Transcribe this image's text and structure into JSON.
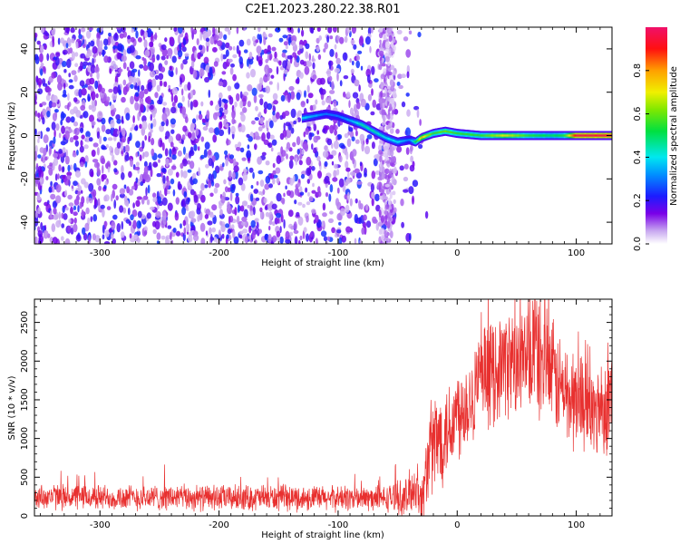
{
  "title": "C2E1.2023.280.22.38.R01",
  "colors": {
    "snr_line": "#e8302f",
    "frame": "#000000",
    "background": "#ffffff"
  },
  "chart_data": [
    {
      "type": "heatmap",
      "xlabel": "Height of straight line (km)",
      "ylabel": "Frequency (Hz)",
      "xlim": [
        -355,
        130
      ],
      "ylim": [
        -50,
        50
      ],
      "x_ticks": [
        -300,
        -200,
        -100,
        0,
        100
      ],
      "x_tick_labels": [
        "-300",
        "-200",
        "-100",
        "0",
        "100"
      ],
      "y_ticks": [
        -40,
        -20,
        0,
        20,
        40
      ],
      "y_tick_labels": [
        "-40",
        "-20",
        "0",
        "20",
        "40"
      ],
      "colorbar": {
        "label": "Normalized spectral amplitude",
        "range": [
          0,
          1
        ],
        "ticks": [
          0.0,
          0.2,
          0.4,
          0.6,
          0.8
        ],
        "tick_labels": [
          "0.0",
          "0.2",
          "0.4",
          "0.6",
          "0.8"
        ],
        "colormap": "purple-blue-cyan-green-yellow-orange-red-pink"
      },
      "noise_region": {
        "x_range": [
          -355,
          -40
        ],
        "amplitude": [
          0.05,
          0.25
        ]
      },
      "noise_stripe": {
        "x_range": [
          -65,
          -52
        ],
        "amplitude": [
          0.02,
          0.12
        ]
      },
      "signal_track": {
        "x": [
          -130,
          -110,
          -100,
          -90,
          -80,
          -70,
          -60,
          -50,
          -40,
          -35,
          -30,
          -20,
          -10,
          0,
          20,
          40,
          60,
          80,
          90,
          100,
          120,
          130
        ],
        "frequency": [
          8,
          10,
          9,
          7,
          5,
          2,
          -1,
          -3,
          -2,
          -3,
          -1,
          1,
          2,
          1,
          0,
          0,
          0,
          0,
          0,
          0,
          0,
          0
        ],
        "amplitude": [
          0.4,
          0.3,
          0.3,
          0.35,
          0.45,
          0.45,
          0.4,
          0.4,
          0.3,
          0.5,
          0.75,
          0.55,
          0.6,
          0.55,
          0.55,
          0.7,
          0.55,
          0.5,
          0.55,
          0.95,
          0.95,
          0.95
        ]
      },
      "grid": false
    },
    {
      "type": "line",
      "xlabel": "Height of straight line (km)",
      "ylabel": "SNR (10 * v/v)",
      "xlim": [
        -355,
        130
      ],
      "ylim": [
        0,
        2800
      ],
      "x_ticks": [
        -300,
        -200,
        -100,
        0,
        100
      ],
      "x_tick_labels": [
        "-300",
        "-200",
        "-100",
        "0",
        "100"
      ],
      "y_ticks": [
        0,
        500,
        1000,
        1500,
        2000,
        2500
      ],
      "y_tick_labels": [
        "0",
        "500",
        "1000",
        "1500",
        "2000",
        "2500"
      ],
      "series": [
        {
          "x": [
            -355,
            -330,
            -300,
            -270,
            -240,
            -210,
            -180,
            -150,
            -120,
            -90,
            -60,
            -50,
            -45,
            -40,
            -35,
            -30,
            -25,
            -20,
            -15,
            -10,
            -5,
            0,
            10,
            20,
            30,
            40,
            50,
            55,
            60,
            65,
            70,
            75,
            80,
            85,
            90,
            95,
            100,
            105,
            110,
            115,
            120,
            125,
            130
          ],
          "y": [
            250,
            245,
            240,
            235,
            240,
            230,
            235,
            230,
            225,
            230,
            220,
            260,
            180,
            300,
            400,
            150,
            700,
            900,
            1000,
            1100,
            1200,
            1350,
            1500,
            1750,
            1850,
            2000,
            1950,
            1900,
            2000,
            2200,
            2000,
            2050,
            1800,
            1700,
            1600,
            1500,
            1500,
            1550,
            1400,
            1300,
            1450,
            1400,
            1600
          ],
          "noise_band": [
            160,
            160,
            160,
            160,
            160,
            160,
            160,
            160,
            160,
            160,
            160,
            200,
            250,
            280,
            300,
            300,
            500,
            700,
            650,
            600,
            600,
            600,
            600,
            650,
            650,
            650,
            700,
            700,
            750,
            800,
            800,
            750,
            700,
            650,
            650,
            650,
            650,
            600,
            600,
            600,
            600,
            600,
            600
          ]
        }
      ],
      "grid": false
    }
  ]
}
